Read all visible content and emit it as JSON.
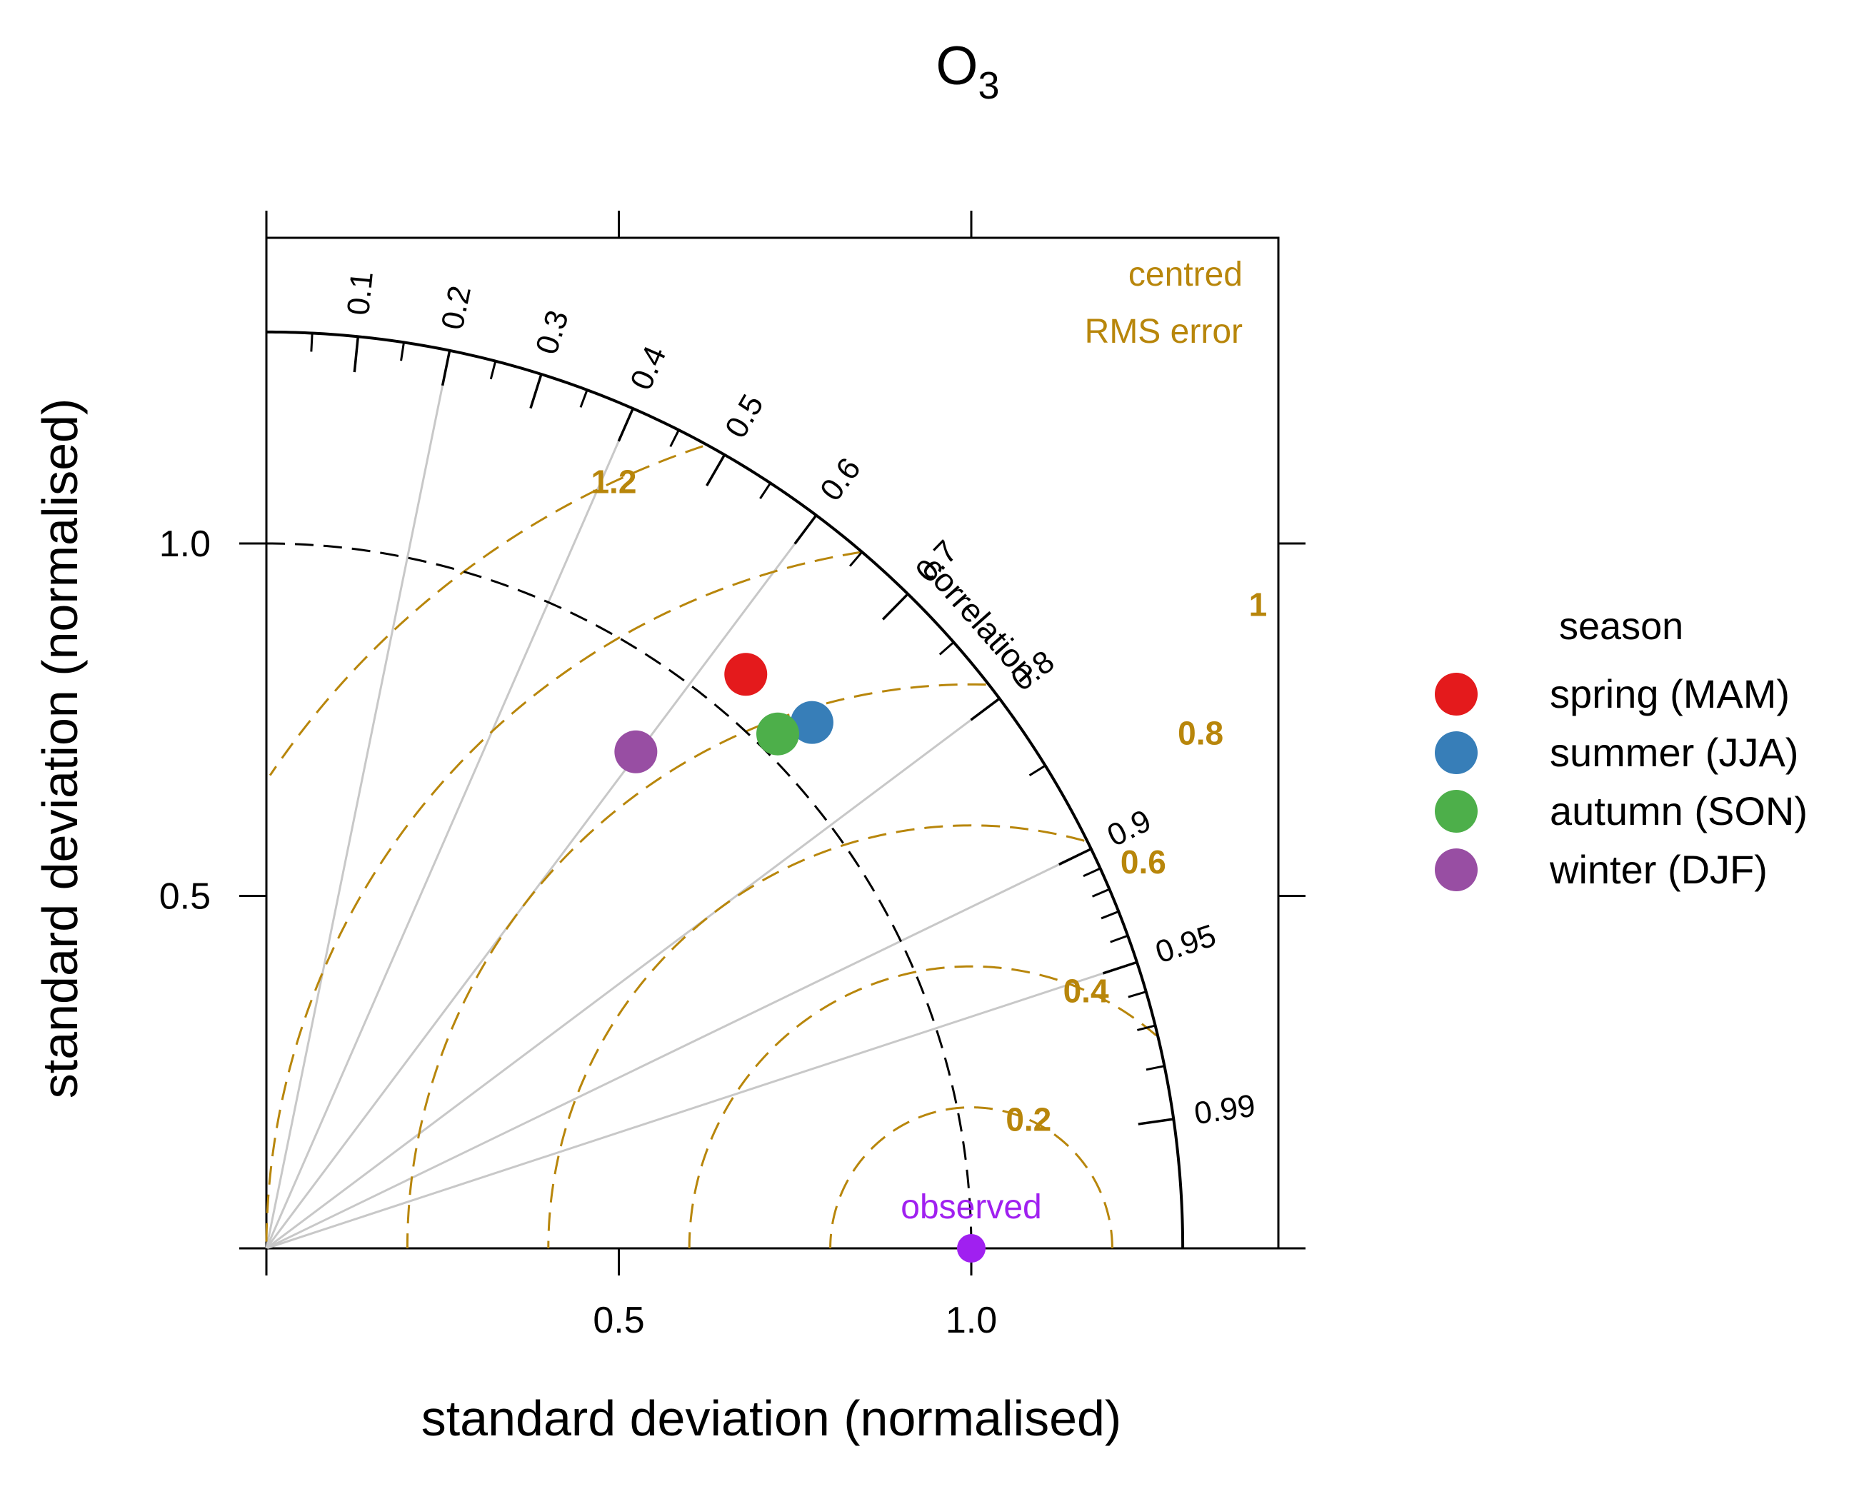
{
  "chart_data": {
    "type": "taylor",
    "title": "O",
    "title_subscript": "3",
    "xlabel": "standard deviation (normalised)",
    "ylabel": "standard deviation (normalised)",
    "sd_max": 1.3,
    "axis_range": [
      0,
      1.44
    ],
    "axis_ticks": [
      0.5,
      1.0
    ],
    "axis_tick_labels": [
      "0.5",
      "1.0"
    ],
    "correlation_label": "correlation",
    "correlation_ticks": [
      {
        "value": 0.1,
        "label": "0.1"
      },
      {
        "value": 0.2,
        "label": "0.2"
      },
      {
        "value": 0.3,
        "label": "0.3"
      },
      {
        "value": 0.4,
        "label": "0.4"
      },
      {
        "value": 0.5,
        "label": "0.5"
      },
      {
        "value": 0.6,
        "label": "0.6"
      },
      {
        "value": 0.7,
        "label": "0.7"
      },
      {
        "value": 0.8,
        "label": "0.8"
      },
      {
        "value": 0.9,
        "label": "0.9"
      },
      {
        "value": 0.95,
        "label": "0.95"
      },
      {
        "value": 0.99,
        "label": "0.99"
      }
    ],
    "correlation_minor_ticks": [
      0.05,
      0.15,
      0.25,
      0.35,
      0.45,
      0.55,
      0.65,
      0.75,
      0.85,
      0.91,
      0.92,
      0.93,
      0.94,
      0.96,
      0.97,
      0.98
    ],
    "correlation_gridlines": [
      0.2,
      0.4,
      0.6,
      0.8,
      0.9,
      0.95
    ],
    "rms_title_lines": [
      "centred",
      "RMS error"
    ],
    "rms_contours": [
      {
        "value": 0.2,
        "label": "0.2"
      },
      {
        "value": 0.4,
        "label": "0.4"
      },
      {
        "value": 0.6,
        "label": "0.6"
      },
      {
        "value": 0.8,
        "label": "0.8"
      },
      {
        "value": 1.0,
        "label": "1"
      },
      {
        "value": 1.2,
        "label": "1.2"
      }
    ],
    "observed": {
      "label": "observed",
      "sd": 1.0,
      "color": "#a020f0"
    },
    "reference_sd_arc": 1.0,
    "legend_title": "season",
    "series": [
      {
        "name": "spring (MAM)",
        "sd": 1.061,
        "correlation": 0.641,
        "color": "#e41a1c"
      },
      {
        "name": "summer (JJA)",
        "sd": 1.075,
        "correlation": 0.72,
        "color": "#377eb8"
      },
      {
        "name": "autumn (SON)",
        "sd": 1.029,
        "correlation": 0.705,
        "color": "#4daf4a"
      },
      {
        "name": "winter (DJF)",
        "sd": 0.878,
        "correlation": 0.597,
        "color": "#984ea3"
      }
    ],
    "colors": {
      "rms": "#b8860b",
      "grid": "#c8c8c8",
      "axis": "#000000"
    }
  }
}
